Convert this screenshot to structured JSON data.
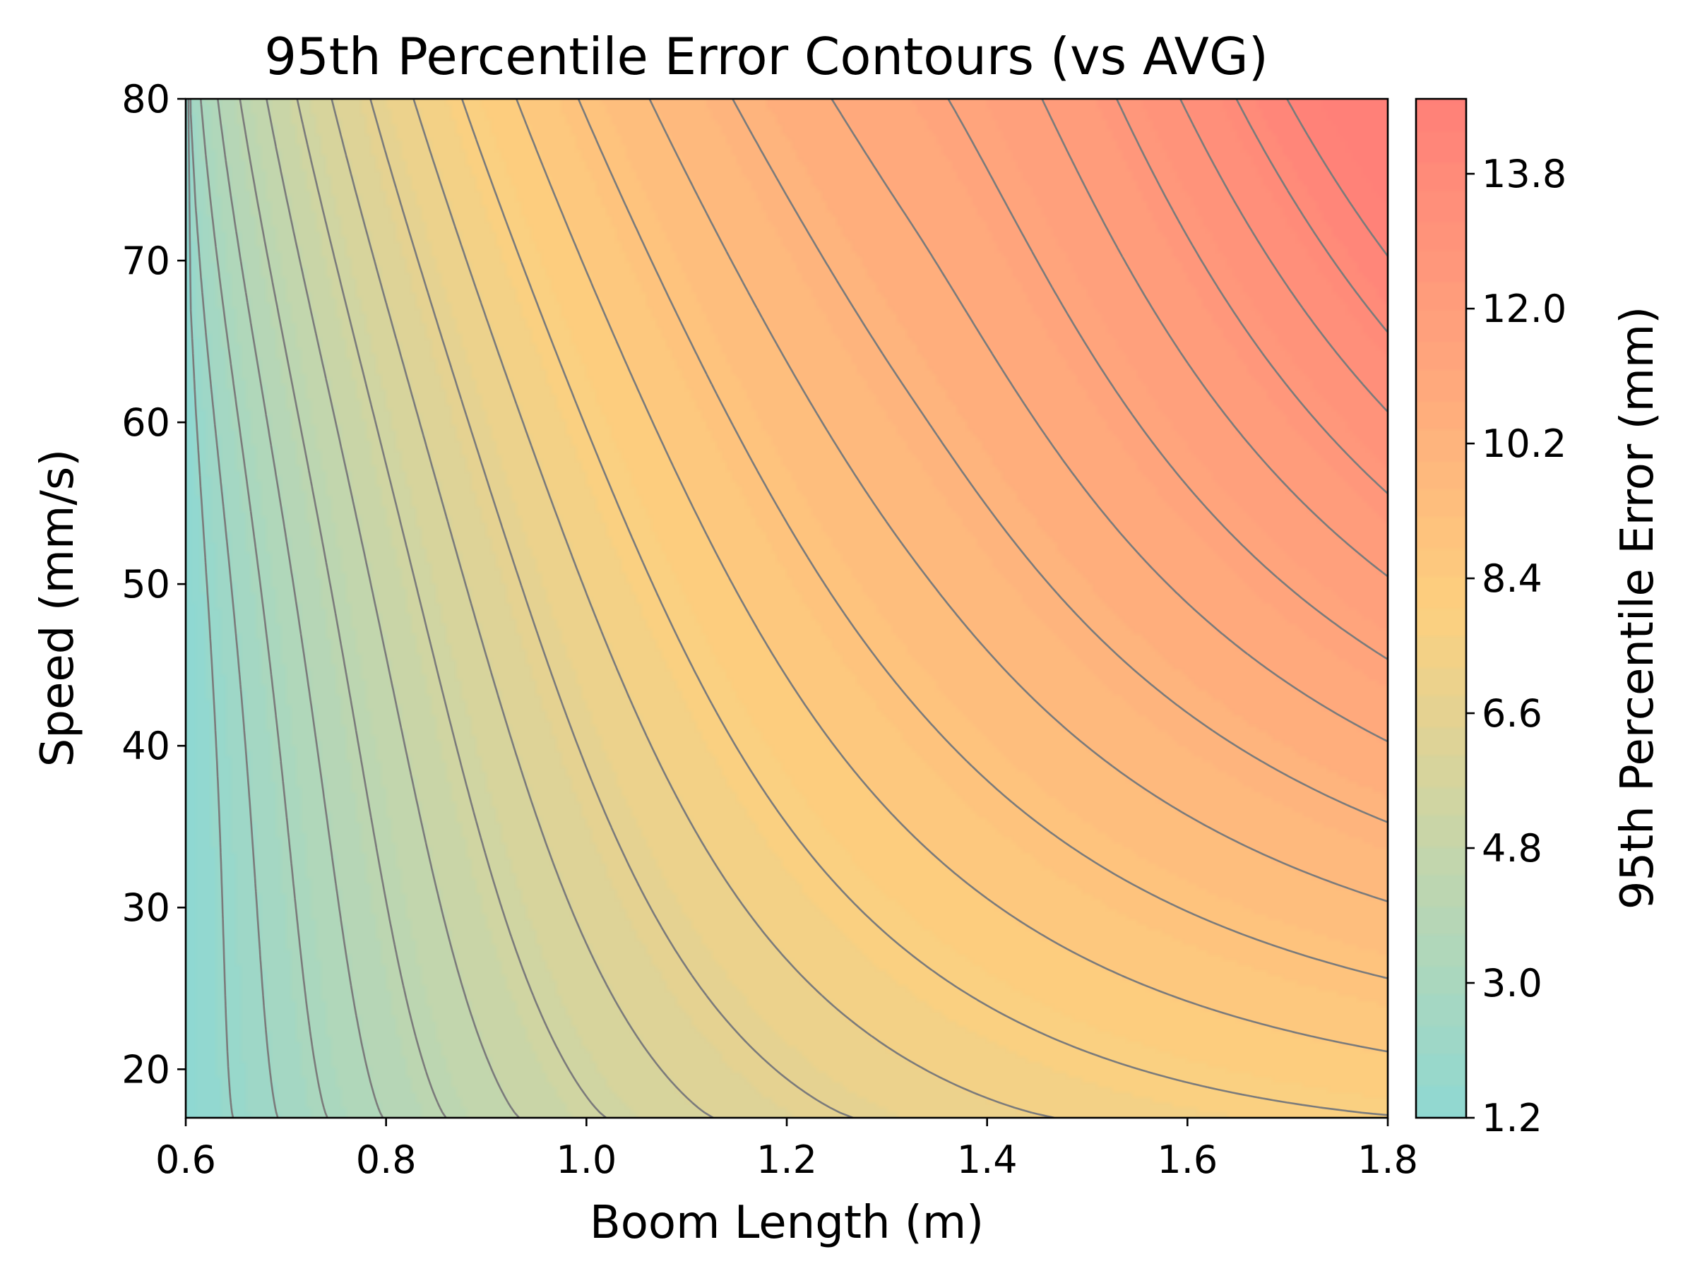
{
  "chart_data": {
    "type": "heatmap",
    "subtype": "filled-contour",
    "title": "95th Percentile Error Contours (vs AVG)",
    "xlabel": "Boom Length (m)",
    "ylabel": "Speed (mm/s)",
    "colorbar_label": "95th Percentile Error (mm)",
    "xlim": [
      0.6,
      1.8
    ],
    "ylim": [
      17,
      80
    ],
    "xticks": [
      "0.6",
      "0.8",
      "1.0",
      "1.2",
      "1.4",
      "1.6",
      "1.8"
    ],
    "yticks": [
      "20",
      "30",
      "40",
      "50",
      "60",
      "70",
      "80"
    ],
    "colorbar_ticks": [
      "1.2",
      "3.0",
      "4.8",
      "6.6",
      "8.4",
      "10.2",
      "12.0",
      "13.8"
    ],
    "colorbar_range": [
      1.2,
      14.8
    ],
    "grid": false,
    "colormap": [
      "#8fd8d2",
      "#c2d6ad",
      "#fdd07e",
      "#ffa47c",
      "#ff8078"
    ],
    "contour_levels_approx": [
      1.8,
      2.4,
      3.0,
      3.6,
      4.2,
      4.8,
      5.4,
      6.0,
      6.6,
      7.2,
      7.8,
      8.4,
      9.0,
      9.6,
      10.2,
      10.8,
      11.4,
      12.0,
      12.6,
      13.2,
      13.8,
      14.4
    ],
    "contour_color": "#7b7b7b"
  }
}
